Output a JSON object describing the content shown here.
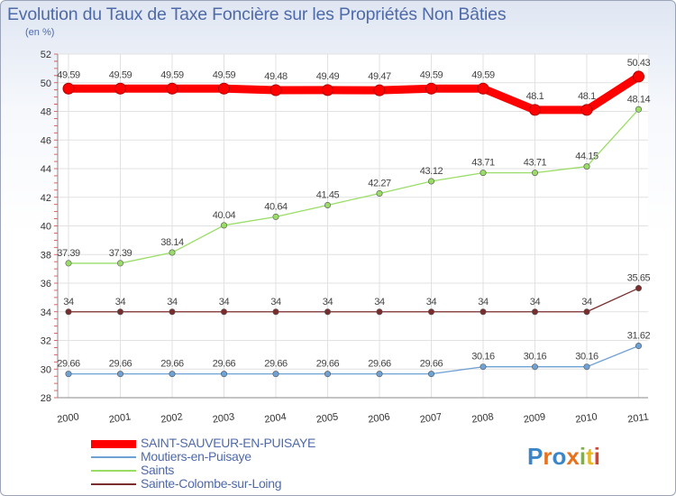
{
  "header": {
    "title": "Evolution du Taux de Taxe Foncière sur les Propriétés Non Bâties",
    "unit": "(en %)"
  },
  "logo": {
    "text": "Proxiti",
    "colors": [
      "#3a86c8",
      "#e8711c",
      "#3a86c8",
      "#e8711c",
      "#7cb342",
      "#e8b923",
      "#d7442e"
    ]
  },
  "chart_data": {
    "type": "line",
    "title": "Evolution du Taux de Taxe Foncière sur les Propriétés Non Bâties",
    "ylabel": "(en %)",
    "xlabel": "",
    "ylim": [
      28,
      52
    ],
    "yticks": [
      28,
      30,
      32,
      34,
      36,
      38,
      40,
      42,
      44,
      46,
      48,
      50,
      52
    ],
    "grid": true,
    "categories": [
      "2000",
      "2001",
      "2002",
      "2003",
      "2004",
      "2005",
      "2006",
      "2007",
      "2008",
      "2009",
      "2010",
      "2011"
    ],
    "series": [
      {
        "name": "SAINT-SAUVEUR-EN-PUISAYE",
        "color": "#ff0000",
        "values": [
          49.59,
          49.59,
          49.59,
          49.59,
          49.48,
          49.49,
          49.47,
          49.59,
          49.59,
          48.1,
          48.1,
          50.43
        ],
        "labels": [
          "49.59",
          "49.59",
          "49.59",
          "49.59",
          "49.48",
          "49.49",
          "49.47",
          "49.59",
          "49.59",
          "48.1",
          "48.1",
          "50.43"
        ]
      },
      {
        "name": "Moutiers-en-Puisaye",
        "color": "#6fa2d4",
        "values": [
          29.66,
          29.66,
          29.66,
          29.66,
          29.66,
          29.66,
          29.66,
          29.66,
          30.16,
          30.16,
          30.16,
          31.62
        ],
        "labels": [
          "29.66",
          "29.66",
          "29.66",
          "29.66",
          "29.66",
          "29.66",
          "29.66",
          "29.66",
          "30.16",
          "30.16",
          "30.16",
          "31.62"
        ]
      },
      {
        "name": "Saints",
        "color": "#99dd66",
        "values": [
          37.39,
          37.39,
          38.14,
          40.04,
          40.64,
          41.45,
          42.27,
          43.12,
          43.71,
          43.71,
          44.15,
          48.14
        ],
        "labels": [
          "37.39",
          "37.39",
          "38.14",
          "40.04",
          "40.64",
          "41.45",
          "42.27",
          "43.12",
          "43.71",
          "43.71",
          "44.15",
          "48.14"
        ]
      },
      {
        "name": "Sainte-Colombe-sur-Loing",
        "color": "#7b2c2c",
        "values": [
          34,
          34,
          34,
          34,
          34,
          34,
          34,
          34,
          34,
          34,
          34,
          35.65
        ],
        "labels": [
          "34",
          "34",
          "34",
          "34",
          "34",
          "34",
          "34",
          "34",
          "34",
          "34",
          "34",
          "35.65"
        ]
      }
    ]
  }
}
